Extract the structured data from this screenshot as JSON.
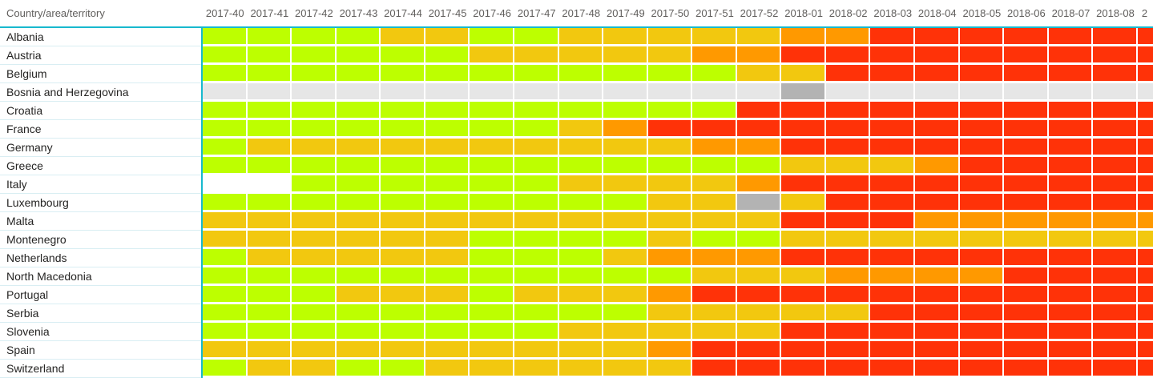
{
  "colors": {
    "green": "#BDFF00",
    "yellow": "#F2C80F",
    "orange": "#FF9900",
    "red": "#FF3208",
    "gray_light": "#E6E6E6",
    "gray_dark": "#B3B3B3",
    "white": "#FFFFFF",
    "accent_teal": "#18B9CE",
    "header_text": "#605E5C",
    "row_label_text": "#252423",
    "row_separator": "#D9EEF3"
  },
  "chart_data": {
    "type": "heatmap",
    "row_header_label": "Country/area/territory",
    "columns": [
      "2017-40",
      "2017-41",
      "2017-42",
      "2017-43",
      "2017-44",
      "2017-45",
      "2017-46",
      "2017-47",
      "2017-48",
      "2017-49",
      "2017-50",
      "2017-51",
      "2017-52",
      "2018-01",
      "2018-02",
      "2018-03",
      "2018-04",
      "2018-05",
      "2018-06",
      "2018-07",
      "2018-08"
    ],
    "partial_column_label": "2",
    "rows": [
      "Albania",
      "Austria",
      "Belgium",
      "Bosnia and Herzegovina",
      "Croatia",
      "France",
      "Germany",
      "Greece",
      "Italy",
      "Luxembourg",
      "Malta",
      "Montenegro",
      "Netherlands",
      "North Macedonia",
      "Portugal",
      "Serbia",
      "Slovenia",
      "Spain",
      "Switzerland"
    ],
    "values": [
      [
        "green",
        "green",
        "green",
        "green",
        "yellow",
        "yellow",
        "green",
        "green",
        "yellow",
        "yellow",
        "yellow",
        "yellow",
        "yellow",
        "orange",
        "orange",
        "red",
        "red",
        "red",
        "red",
        "red",
        "red",
        "red"
      ],
      [
        "green",
        "green",
        "green",
        "green",
        "green",
        "green",
        "yellow",
        "yellow",
        "yellow",
        "yellow",
        "yellow",
        "orange",
        "orange",
        "red",
        "red",
        "red",
        "red",
        "red",
        "red",
        "red",
        "red",
        "red"
      ],
      [
        "green",
        "green",
        "green",
        "green",
        "green",
        "green",
        "green",
        "green",
        "green",
        "green",
        "green",
        "green",
        "yellow",
        "yellow",
        "red",
        "red",
        "red",
        "red",
        "red",
        "red",
        "red",
        "red"
      ],
      [
        "gray_light",
        "gray_light",
        "gray_light",
        "gray_light",
        "gray_light",
        "gray_light",
        "gray_light",
        "gray_light",
        "gray_light",
        "gray_light",
        "gray_light",
        "gray_light",
        "gray_light",
        "gray_dark",
        "gray_light",
        "gray_light",
        "gray_light",
        "gray_light",
        "gray_light",
        "gray_light",
        "gray_light",
        "gray_light"
      ],
      [
        "green",
        "green",
        "green",
        "green",
        "green",
        "green",
        "green",
        "green",
        "green",
        "green",
        "green",
        "green",
        "red",
        "red",
        "red",
        "red",
        "red",
        "red",
        "red",
        "red",
        "red",
        "red"
      ],
      [
        "green",
        "green",
        "green",
        "green",
        "green",
        "green",
        "green",
        "green",
        "yellow",
        "orange",
        "red",
        "red",
        "red",
        "red",
        "red",
        "red",
        "red",
        "red",
        "red",
        "red",
        "red",
        "red"
      ],
      [
        "green",
        "yellow",
        "yellow",
        "yellow",
        "yellow",
        "yellow",
        "yellow",
        "yellow",
        "yellow",
        "yellow",
        "yellow",
        "orange",
        "orange",
        "red",
        "red",
        "red",
        "red",
        "red",
        "red",
        "red",
        "red",
        "red"
      ],
      [
        "green",
        "green",
        "green",
        "green",
        "green",
        "green",
        "green",
        "green",
        "green",
        "green",
        "green",
        "green",
        "green",
        "yellow",
        "yellow",
        "yellow",
        "orange",
        "red",
        "red",
        "red",
        "red",
        "red"
      ],
      [
        "white",
        "white",
        "green",
        "green",
        "green",
        "green",
        "green",
        "green",
        "yellow",
        "yellow",
        "yellow",
        "yellow",
        "orange",
        "red",
        "red",
        "red",
        "red",
        "red",
        "red",
        "red",
        "red",
        "red"
      ],
      [
        "green",
        "green",
        "green",
        "green",
        "green",
        "green",
        "green",
        "green",
        "green",
        "green",
        "yellow",
        "yellow",
        "gray_dark",
        "yellow",
        "red",
        "red",
        "red",
        "red",
        "red",
        "red",
        "red",
        "red"
      ],
      [
        "yellow",
        "yellow",
        "yellow",
        "yellow",
        "yellow",
        "yellow",
        "yellow",
        "yellow",
        "yellow",
        "yellow",
        "yellow",
        "yellow",
        "yellow",
        "red",
        "red",
        "red",
        "orange",
        "orange",
        "orange",
        "orange",
        "orange",
        "orange"
      ],
      [
        "yellow",
        "yellow",
        "yellow",
        "yellow",
        "yellow",
        "yellow",
        "green",
        "green",
        "green",
        "green",
        "yellow",
        "green",
        "green",
        "yellow",
        "yellow",
        "yellow",
        "yellow",
        "yellow",
        "yellow",
        "yellow",
        "yellow",
        "yellow"
      ],
      [
        "green",
        "yellow",
        "yellow",
        "yellow",
        "yellow",
        "yellow",
        "green",
        "green",
        "green",
        "yellow",
        "orange",
        "orange",
        "orange",
        "red",
        "red",
        "red",
        "red",
        "red",
        "red",
        "red",
        "red",
        "red"
      ],
      [
        "green",
        "green",
        "green",
        "green",
        "green",
        "green",
        "green",
        "green",
        "green",
        "green",
        "green",
        "yellow",
        "yellow",
        "yellow",
        "orange",
        "orange",
        "orange",
        "orange",
        "red",
        "red",
        "red",
        "red"
      ],
      [
        "green",
        "green",
        "green",
        "yellow",
        "yellow",
        "yellow",
        "green",
        "yellow",
        "yellow",
        "yellow",
        "orange",
        "red",
        "red",
        "red",
        "red",
        "red",
        "red",
        "red",
        "red",
        "red",
        "red",
        "red"
      ],
      [
        "green",
        "green",
        "green",
        "green",
        "green",
        "green",
        "green",
        "green",
        "green",
        "green",
        "yellow",
        "yellow",
        "yellow",
        "yellow",
        "yellow",
        "red",
        "red",
        "red",
        "red",
        "red",
        "red",
        "red"
      ],
      [
        "green",
        "green",
        "green",
        "green",
        "green",
        "green",
        "green",
        "green",
        "yellow",
        "yellow",
        "yellow",
        "yellow",
        "yellow",
        "red",
        "red",
        "red",
        "red",
        "red",
        "red",
        "red",
        "red",
        "red"
      ],
      [
        "yellow",
        "yellow",
        "yellow",
        "yellow",
        "yellow",
        "yellow",
        "yellow",
        "yellow",
        "yellow",
        "yellow",
        "orange",
        "red",
        "red",
        "red",
        "red",
        "red",
        "red",
        "red",
        "red",
        "red",
        "red",
        "red"
      ],
      [
        "green",
        "yellow",
        "yellow",
        "green",
        "green",
        "yellow",
        "yellow",
        "yellow",
        "yellow",
        "yellow",
        "yellow",
        "red",
        "red",
        "red",
        "red",
        "red",
        "red",
        "red",
        "red",
        "red",
        "red",
        "red"
      ]
    ]
  }
}
